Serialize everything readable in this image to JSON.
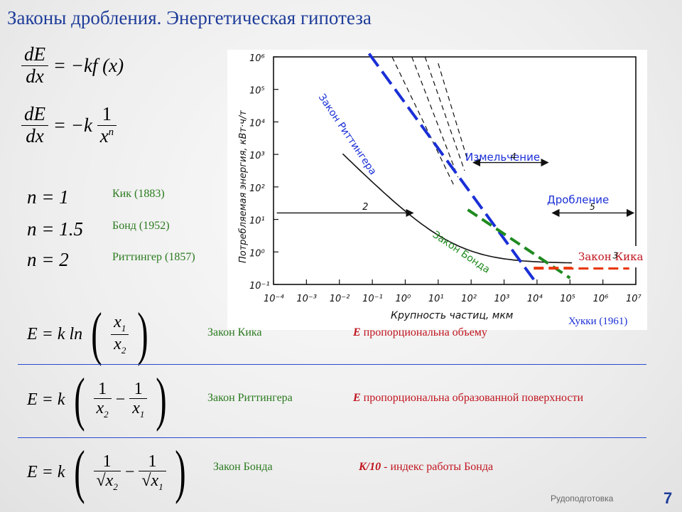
{
  "title": "Законы дробления. Энергетическая гипотеза",
  "formulas": {
    "diff1": {
      "num": "dE",
      "den": "dx",
      "rhs": "= −kf (x)"
    },
    "diff2": {
      "num": "dE",
      "den": "dx",
      "rhs_left": "= −k",
      "rhs_num": "1",
      "rhs_den": "x",
      "rhs_den_sup": "n"
    },
    "exponents": [
      {
        "eq": "n = 1",
        "label": "Кик (1883)"
      },
      {
        "eq": "n = 1.5",
        "label": "Бонд (1952)"
      },
      {
        "eq": "n = 2",
        "label": "Риттингер (1857)"
      }
    ]
  },
  "laws": [
    {
      "lhs": "E = k ln",
      "law": "Закон Кика",
      "desc_em": "E",
      "desc": " пропорциональна объему",
      "terms": {
        "num": "x",
        "num_sub": "1",
        "den": "x",
        "den_sub": "2"
      }
    },
    {
      "lhs": "E = k",
      "law": "Закон Риттингера",
      "desc_em": "E",
      "desc": " пропорциональна образованной поверхности",
      "terms": {
        "a_num": "1",
        "a_den": "x",
        "a_den_sub": "2",
        "minus": "−",
        "b_num": "1",
        "b_den": "x",
        "b_den_sub": "1"
      }
    },
    {
      "lhs": "E = k",
      "law": "Закон Бонда",
      "desc_em": "K/10",
      "desc": " - индекс работы Бонда",
      "terms": {
        "a_num": "1",
        "a_den": "x",
        "a_den_sub": "2",
        "minus": "−",
        "b_num": "1",
        "b_den": "x",
        "b_den_sub": "1"
      }
    }
  ],
  "chart_data": {
    "type": "line",
    "ylabel": "Потребляемая энергия, кВт·ч/т",
    "xlabel": "Крупность частиц, мкм",
    "x_ticks": [
      "10⁻⁴",
      "10⁻³",
      "10⁻²",
      "10⁻¹",
      "10⁰",
      "10¹",
      "10²",
      "10³",
      "10⁴",
      "10⁵",
      "10⁶",
      "10⁷"
    ],
    "y_ticks": [
      "10⁶",
      "10⁵",
      "10⁴",
      "10³",
      "10²",
      "10¹",
      "10⁰",
      "10⁻¹"
    ],
    "xlim_exp": [
      -4,
      7
    ],
    "ylim_exp": [
      -1,
      6
    ],
    "x_scale": "log",
    "y_scale": "log",
    "annotations": {
      "grinding": "Измельчение",
      "grinding_marker": "4",
      "crushing": "Дробление",
      "crushing_marker": "5",
      "region_2": "2",
      "region_3": "3"
    },
    "series": [
      {
        "name": "Закон Риттингера",
        "color": "#1a2fd6",
        "style": "dashed"
      },
      {
        "name": "Закон Бонда",
        "color": "#1f8a1f",
        "style": "dashed"
      },
      {
        "name": "Закон Кика",
        "color": "#e8380d",
        "style": "dashed"
      }
    ],
    "source": "Хукки (1961)"
  },
  "colors": {
    "title": "#1f3d9a",
    "green": "#2a7a1e",
    "red": "#c0141e",
    "rule": "#2a4bd0"
  },
  "footer": "Рудоподготовка",
  "page_number": "7"
}
